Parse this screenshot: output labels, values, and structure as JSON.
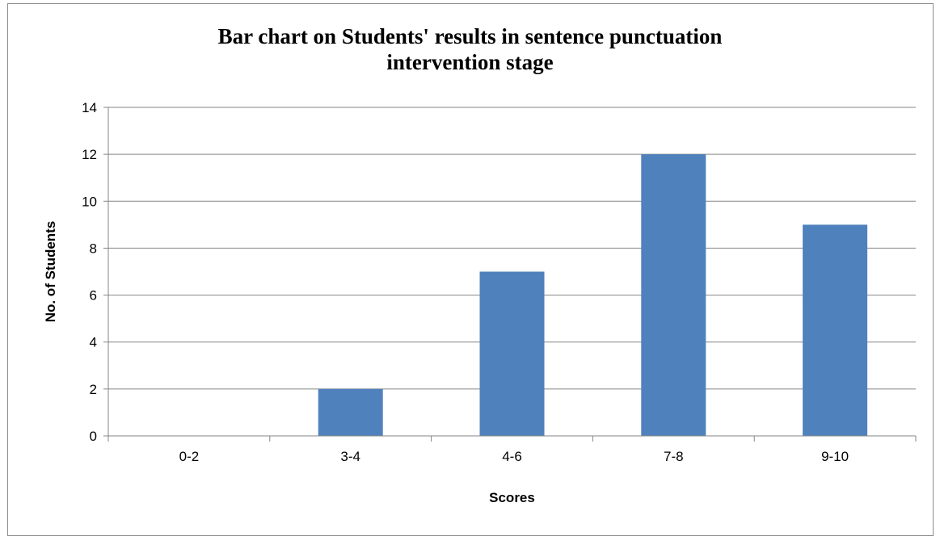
{
  "chart_data": {
    "type": "bar",
    "title_lines": [
      "Bar chart on Students' results in sentence punctuation",
      "intervention stage"
    ],
    "categories": [
      "0-2",
      "3-4",
      "4-6",
      "7-8",
      "9-10"
    ],
    "values": [
      0,
      2,
      7,
      12,
      9
    ],
    "xlabel": "Scores",
    "ylabel": "No. of Students",
    "ylim": [
      0,
      14
    ],
    "yticks": [
      0,
      2,
      4,
      6,
      8,
      10,
      12,
      14
    ],
    "grid": true,
    "legend": "none",
    "bar_color": "#4f81bd",
    "grid_color": "#868686"
  }
}
